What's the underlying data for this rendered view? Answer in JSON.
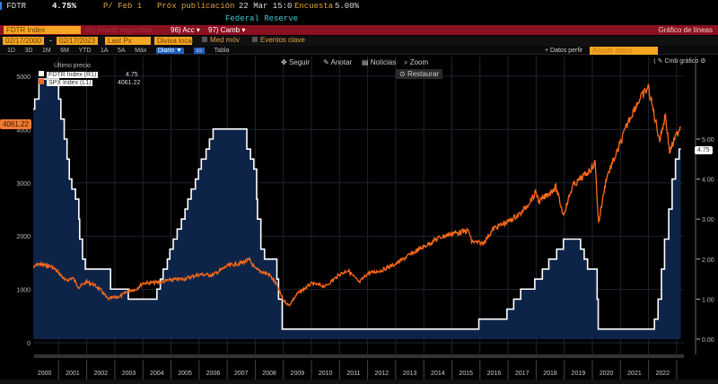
{
  "header": {
    "ticker": "FDTR",
    "value": "4.75%",
    "period": "P/ Feb 1",
    "next_release_label": "Próx publicación",
    "next_release": "22 Mar 15:0",
    "survey_label": "Encuesta",
    "survey": "5.00%",
    "source": "Federal Reserve"
  },
  "toolbar": {
    "security": "FDTR Index",
    "muted": "95) Añadir seguridad",
    "actions": "96) Acc ▾",
    "change": "97) Camb ▾",
    "chart_type": "Gráfico de líneas"
  },
  "controls": {
    "start_date": "02/17/2000",
    "end_date": "02/17/2023",
    "dash": "-",
    "field": "Last Px",
    "currency": "Divisa local",
    "moving_avg": "Med móv",
    "key_events": "Eventos clave",
    "data_label": "+ Datos perfir",
    "data_input": "Añadir datos"
  },
  "periods": [
    "1D",
    "3D",
    "1M",
    "6M",
    "YTD",
    "1A",
    "5A",
    "Máx"
  ],
  "frequency": "Diario ▼",
  "table": "Tabla",
  "chart_tools": {
    "follow": "Seguir",
    "annotate": "Anotar",
    "news": "Noticias",
    "zoom": "Zoom",
    "restore": "Restaurar",
    "edit_chart": "Cmb gráfico"
  },
  "colors": {
    "fdtr": "#ffffff",
    "fdtr_fill": "#0d2448",
    "spx": "#ff6a1a",
    "orange": "#f5a623",
    "red": "#8b1020"
  },
  "chart_data": {
    "type": "line",
    "legend_title": "Último precio",
    "legend": [
      {
        "name": "FDTR Index  (R1)",
        "last": "4.75"
      },
      {
        "name": "SPX Index  (L1)",
        "last": "4061.22"
      }
    ],
    "left_axis": {
      "ticks": [
        0,
        1000,
        2000,
        3000,
        4000,
        5000
      ],
      "range": [
        0,
        5050
      ],
      "current": "4061.22"
    },
    "right_axis": {
      "ticks": [
        "0.00",
        "1.00",
        "2.00",
        "3.00",
        "4.00",
        "5.00"
      ],
      "range": [
        0,
        6.7
      ],
      "current": "4.75"
    },
    "x_ticks": [
      "2000",
      "2001",
      "2002",
      "2003",
      "2004",
      "2005",
      "2006",
      "2007",
      "2008",
      "2009",
      "2010",
      "2011",
      "2012",
      "2013",
      "2014",
      "2015",
      "2016",
      "2017",
      "2018",
      "2019",
      "2020",
      "2021",
      "2022"
    ],
    "x_range": [
      2000.1,
      2023.15
    ],
    "series": [
      {
        "name": "FDTR Index",
        "axis": "right",
        "style": "step-area",
        "points": [
          [
            2000.1,
            5.75
          ],
          [
            2000.15,
            6.0
          ],
          [
            2000.3,
            6.5
          ],
          [
            2001.0,
            6.0
          ],
          [
            2001.08,
            5.5
          ],
          [
            2001.2,
            5.0
          ],
          [
            2001.3,
            4.5
          ],
          [
            2001.38,
            4.0
          ],
          [
            2001.47,
            3.75
          ],
          [
            2001.6,
            3.5
          ],
          [
            2001.72,
            3.0
          ],
          [
            2001.75,
            2.5
          ],
          [
            2001.85,
            2.0
          ],
          [
            2001.95,
            1.75
          ],
          [
            2002.85,
            1.25
          ],
          [
            2003.48,
            1.0
          ],
          [
            2004.5,
            1.25
          ],
          [
            2004.62,
            1.5
          ],
          [
            2004.72,
            1.75
          ],
          [
            2004.87,
            2.0
          ],
          [
            2004.96,
            2.25
          ],
          [
            2005.08,
            2.5
          ],
          [
            2005.22,
            2.75
          ],
          [
            2005.37,
            3.0
          ],
          [
            2005.5,
            3.25
          ],
          [
            2005.6,
            3.5
          ],
          [
            2005.72,
            3.75
          ],
          [
            2005.87,
            4.0
          ],
          [
            2005.98,
            4.25
          ],
          [
            2006.08,
            4.5
          ],
          [
            2006.25,
            4.75
          ],
          [
            2006.37,
            5.0
          ],
          [
            2006.5,
            5.25
          ],
          [
            2007.7,
            4.75
          ],
          [
            2007.83,
            4.5
          ],
          [
            2007.95,
            4.25
          ],
          [
            2008.05,
            3.5
          ],
          [
            2008.08,
            3.0
          ],
          [
            2008.2,
            2.25
          ],
          [
            2008.33,
            2.0
          ],
          [
            2008.77,
            1.5
          ],
          [
            2008.83,
            1.0
          ],
          [
            2008.96,
            0.25
          ],
          [
            2015.96,
            0.5
          ],
          [
            2016.96,
            0.75
          ],
          [
            2017.2,
            1.0
          ],
          [
            2017.45,
            1.25
          ],
          [
            2017.95,
            1.5
          ],
          [
            2018.22,
            1.75
          ],
          [
            2018.45,
            2.0
          ],
          [
            2018.73,
            2.25
          ],
          [
            2018.97,
            2.5
          ],
          [
            2019.58,
            2.25
          ],
          [
            2019.71,
            2.0
          ],
          [
            2019.83,
            1.75
          ],
          [
            2020.17,
            1.0
          ],
          [
            2020.21,
            0.25
          ],
          [
            2022.21,
            0.5
          ],
          [
            2022.34,
            1.0
          ],
          [
            2022.46,
            1.75
          ],
          [
            2022.57,
            2.5
          ],
          [
            2022.72,
            3.25
          ],
          [
            2022.84,
            4.0
          ],
          [
            2022.96,
            4.5
          ],
          [
            2023.09,
            4.75
          ],
          [
            2023.15,
            4.75
          ]
        ]
      },
      {
        "name": "SPX Index",
        "axis": "left",
        "style": "line",
        "points": [
          [
            2000.1,
            1400
          ],
          [
            2000.25,
            1480
          ],
          [
            2000.5,
            1450
          ],
          [
            2000.75,
            1430
          ],
          [
            2001.0,
            1320
          ],
          [
            2001.25,
            1160
          ],
          [
            2001.5,
            1220
          ],
          [
            2001.72,
            1040
          ],
          [
            2002.0,
            1140
          ],
          [
            2002.25,
            1090
          ],
          [
            2002.5,
            990
          ],
          [
            2002.75,
            820
          ],
          [
            2003.0,
            850
          ],
          [
            2003.2,
            870
          ],
          [
            2003.5,
            980
          ],
          [
            2003.75,
            1000
          ],
          [
            2004.0,
            1120
          ],
          [
            2004.5,
            1130
          ],
          [
            2005.0,
            1180
          ],
          [
            2005.5,
            1200
          ],
          [
            2006.0,
            1280
          ],
          [
            2006.5,
            1270
          ],
          [
            2007.0,
            1440
          ],
          [
            2007.5,
            1500
          ],
          [
            2007.8,
            1550
          ],
          [
            2008.0,
            1380
          ],
          [
            2008.5,
            1280
          ],
          [
            2008.75,
            1100
          ],
          [
            2009.0,
            800
          ],
          [
            2009.2,
            700
          ],
          [
            2009.5,
            920
          ],
          [
            2010.0,
            1110
          ],
          [
            2010.5,
            1060
          ],
          [
            2011.0,
            1280
          ],
          [
            2011.3,
            1360
          ],
          [
            2011.7,
            1130
          ],
          [
            2012.0,
            1300
          ],
          [
            2012.5,
            1360
          ],
          [
            2013.0,
            1480
          ],
          [
            2013.5,
            1650
          ],
          [
            2014.0,
            1800
          ],
          [
            2014.5,
            1960
          ],
          [
            2015.0,
            2050
          ],
          [
            2015.6,
            2100
          ],
          [
            2015.7,
            1900
          ],
          [
            2016.1,
            1860
          ],
          [
            2016.5,
            2150
          ],
          [
            2017.0,
            2270
          ],
          [
            2017.5,
            2450
          ],
          [
            2018.0,
            2820
          ],
          [
            2018.1,
            2640
          ],
          [
            2018.7,
            2920
          ],
          [
            2018.97,
            2400
          ],
          [
            2019.3,
            2940
          ],
          [
            2019.9,
            3230
          ],
          [
            2020.1,
            3380
          ],
          [
            2020.22,
            2240
          ],
          [
            2020.5,
            3100
          ],
          [
            2020.9,
            3600
          ],
          [
            2021.3,
            4180
          ],
          [
            2021.6,
            4500
          ],
          [
            2021.99,
            4790
          ],
          [
            2022.4,
            3800
          ],
          [
            2022.6,
            4280
          ],
          [
            2022.75,
            3580
          ],
          [
            2022.95,
            3840
          ],
          [
            2023.13,
            4061
          ]
        ]
      }
    ]
  }
}
